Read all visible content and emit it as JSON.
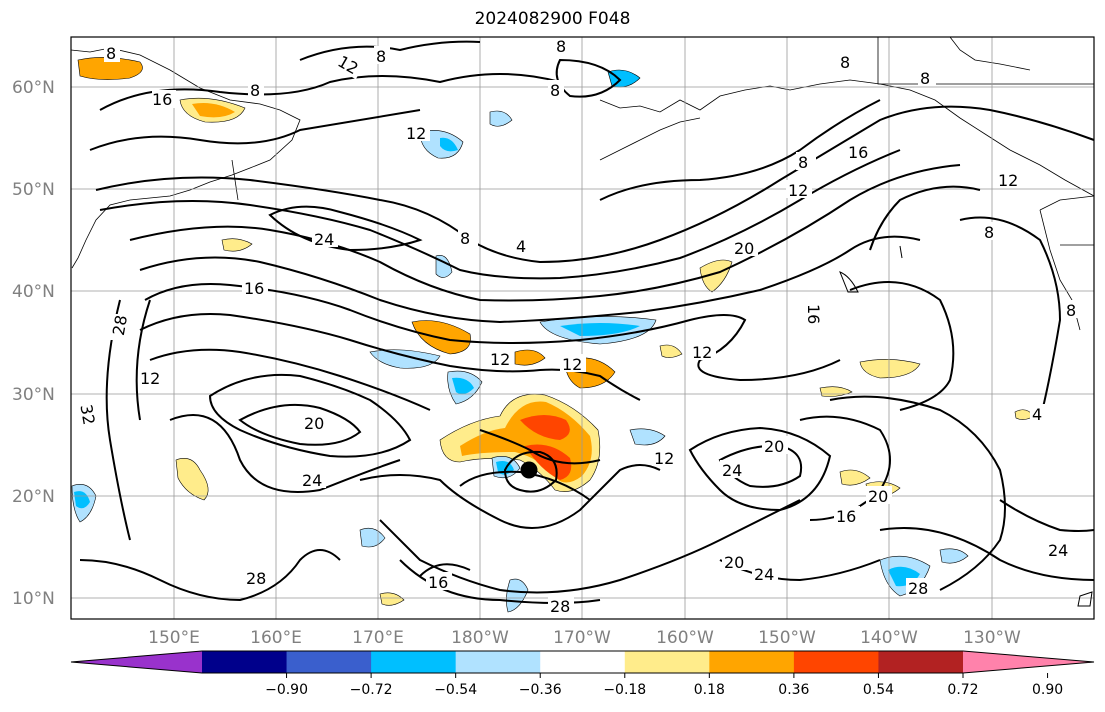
{
  "title": "2024082900 F048",
  "map": {
    "lat_labels": [
      "60°N",
      "50°N",
      "40°N",
      "30°N",
      "20°N",
      "10°N"
    ],
    "lon_labels": [
      "150°E",
      "160°E",
      "170°E",
      "180°W",
      "170°W",
      "160°W",
      "150°W",
      "140°W",
      "130°W"
    ],
    "contour_labels": [
      "8",
      "12",
      "16",
      "24",
      "28",
      "32",
      "20",
      "4"
    ],
    "storm_marker": "tropical-cyclone-center"
  },
  "colorbar": {
    "ticks": [
      "−0.90",
      "−0.72",
      "−0.54",
      "−0.36",
      "−0.18",
      "0.18",
      "0.36",
      "0.54",
      "0.72",
      "0.90"
    ],
    "colors": [
      "#9932cc",
      "#00008b",
      "#3a5fcd",
      "#00bfff",
      "#b0e2ff",
      "#ffffff",
      "#ffec8b",
      "#ffa500",
      "#ff4500",
      "#b22222",
      "#ff82ab"
    ]
  }
}
